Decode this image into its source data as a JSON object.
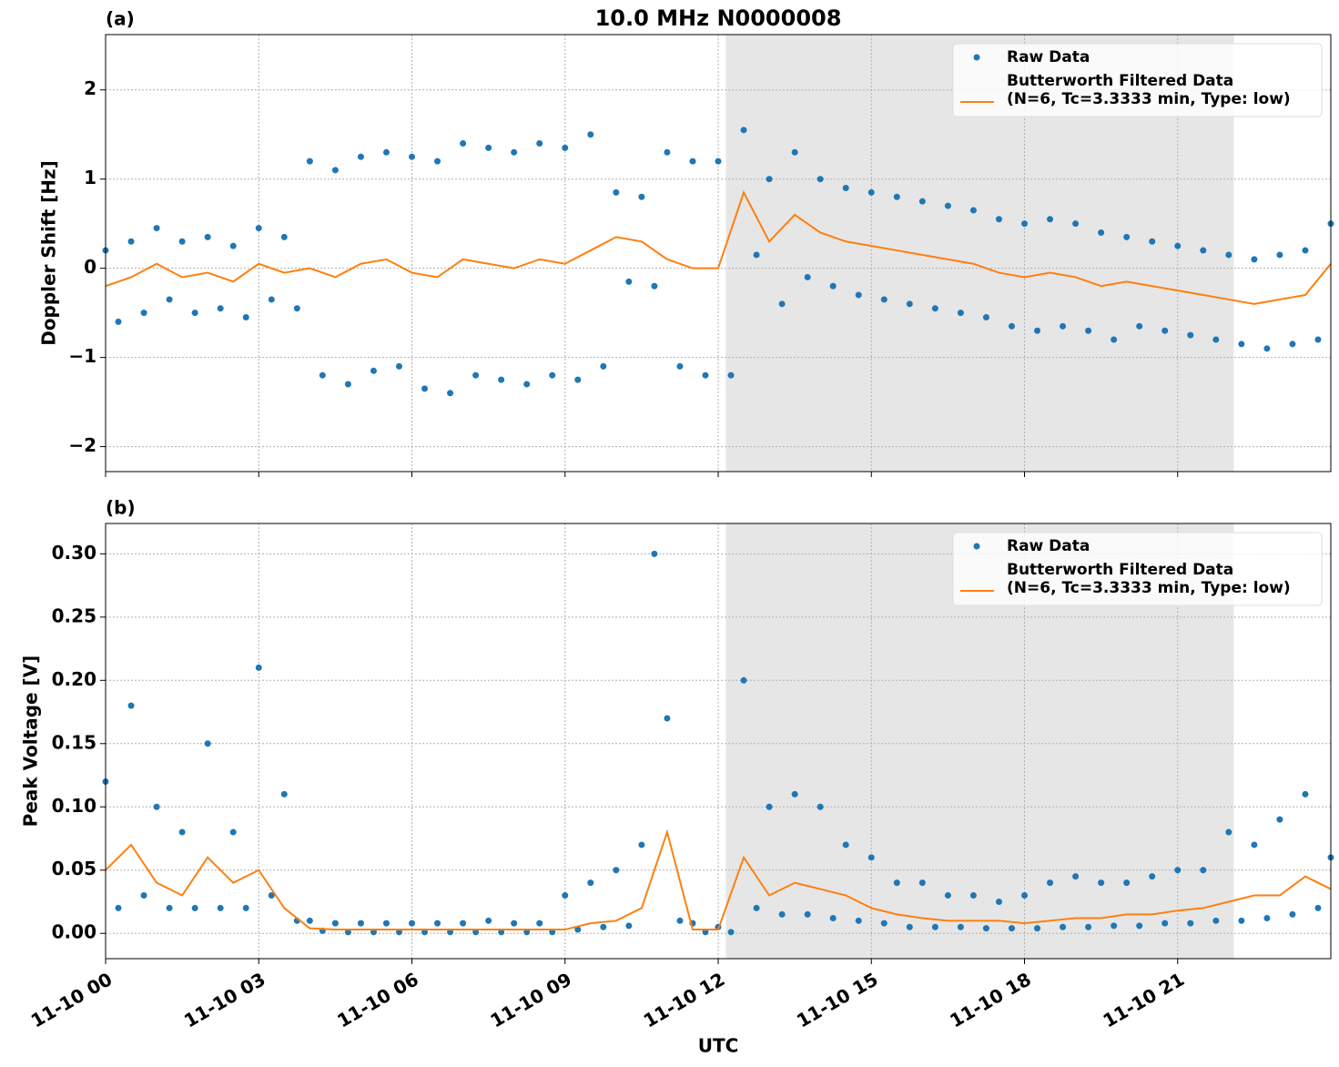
{
  "chart_data": [
    {
      "type": "line",
      "panel_label": "(a)",
      "title": "10.0 MHz N0000008",
      "ylabel": "Doppler Shift [Hz]",
      "xlim": [
        0,
        24
      ],
      "xticks": [
        0,
        3,
        6,
        9,
        12,
        15,
        18,
        21
      ],
      "ylim": [
        -2.28,
        2.62
      ],
      "yticks": [
        {
          "value": -2,
          "label": "−2"
        },
        {
          "value": -1,
          "label": "−1"
        },
        0,
        1,
        2
      ],
      "grid": true,
      "legend": "upper right",
      "shaded_region": [
        12.15,
        22.1
      ],
      "series": [
        {
          "name": "Raw Data",
          "type": "scatter",
          "color": "#1f77b4",
          "x": [
            0,
            0.25,
            0.5,
            0.75,
            1,
            1.25,
            1.5,
            1.75,
            2,
            2.25,
            2.5,
            2.75,
            3,
            3.25,
            3.5,
            3.75,
            4,
            4.25,
            4.5,
            4.75,
            5,
            5.25,
            5.5,
            5.75,
            6,
            6.25,
            6.5,
            6.75,
            7,
            7.25,
            7.5,
            7.75,
            8,
            8.25,
            8.5,
            8.75,
            9,
            9.25,
            9.5,
            9.75,
            10,
            10.25,
            10.5,
            10.75,
            11,
            11.25,
            11.5,
            11.75,
            12,
            12.25,
            12.5,
            12.75,
            13,
            13.25,
            13.5,
            13.75,
            14,
            14.25,
            14.5,
            14.75,
            15,
            15.25,
            15.5,
            15.75,
            16,
            16.25,
            16.5,
            16.75,
            17,
            17.25,
            17.5,
            17.75,
            18,
            18.25,
            18.5,
            18.75,
            19,
            19.25,
            19.5,
            19.75,
            20,
            20.25,
            20.5,
            20.75,
            21,
            21.25,
            21.5,
            21.75,
            22,
            22.25,
            22.5,
            22.75,
            23,
            23.25,
            23.5,
            23.75,
            24
          ],
          "values": [
            0.2,
            -0.6,
            0.3,
            -0.5,
            0.45,
            -0.35,
            0.3,
            -0.5,
            0.35,
            -0.45,
            0.25,
            -0.55,
            0.45,
            -0.35,
            0.35,
            -0.45,
            1.2,
            -1.2,
            1.1,
            -1.3,
            1.25,
            -1.15,
            1.3,
            -1.1,
            1.25,
            -1.35,
            1.2,
            -1.4,
            1.4,
            -1.2,
            1.35,
            -1.25,
            1.3,
            -1.3,
            1.4,
            -1.2,
            1.35,
            -1.25,
            1.5,
            -1.1,
            0.85,
            -0.15,
            0.8,
            -0.2,
            1.3,
            -1.1,
            1.2,
            -1.2,
            1.2,
            -1.2,
            1.55,
            0.15,
            1.0,
            -0.4,
            1.3,
            -0.1,
            1.0,
            -0.2,
            0.9,
            -0.3,
            0.85,
            -0.35,
            0.8,
            -0.4,
            0.75,
            -0.45,
            0.7,
            -0.5,
            0.65,
            -0.55,
            0.55,
            -0.65,
            0.5,
            -0.7,
            0.55,
            -0.65,
            0.5,
            -0.7,
            0.4,
            -0.8,
            0.35,
            -0.65,
            0.3,
            -0.7,
            0.25,
            -0.75,
            0.2,
            -0.8,
            0.15,
            -0.85,
            0.1,
            -0.9,
            0.15,
            -0.85,
            0.2,
            -0.8,
            0.5
          ]
        },
        {
          "name": [
            "Butterworth Filtered Data",
            "(N=6, Tc=3.3333 min, Type: low)"
          ],
          "type": "line",
          "color": "#ff7f0e",
          "x": [
            0,
            0.5,
            1,
            1.5,
            2,
            2.5,
            3,
            3.5,
            4,
            4.5,
            5,
            5.5,
            6,
            6.5,
            7,
            7.5,
            8,
            8.5,
            9,
            9.5,
            10,
            10.5,
            11,
            11.5,
            12,
            12.5,
            13,
            13.5,
            14,
            14.5,
            15,
            15.5,
            16,
            16.5,
            17,
            17.5,
            18,
            18.5,
            19,
            19.5,
            20,
            20.5,
            21,
            21.5,
            22,
            22.5,
            23,
            23.5,
            24
          ],
          "values": [
            -0.2,
            -0.1,
            0.05,
            -0.1,
            -0.05,
            -0.15,
            0.05,
            -0.05,
            0.0,
            -0.1,
            0.05,
            0.1,
            -0.05,
            -0.1,
            0.1,
            0.05,
            0.0,
            0.1,
            0.05,
            0.2,
            0.35,
            0.3,
            0.1,
            0.0,
            0.0,
            0.85,
            0.3,
            0.6,
            0.4,
            0.3,
            0.25,
            0.2,
            0.15,
            0.1,
            0.05,
            -0.05,
            -0.1,
            -0.05,
            -0.1,
            -0.2,
            -0.15,
            -0.2,
            -0.25,
            -0.3,
            -0.35,
            -0.4,
            -0.35,
            -0.3,
            0.05
          ]
        }
      ]
    },
    {
      "type": "line",
      "panel_label": "(b)",
      "ylabel": "Peak Voltage [V]",
      "xlabel": "UTC",
      "xlim": [
        0,
        24
      ],
      "xticks": [
        {
          "value": 0,
          "label": "11-10 00"
        },
        {
          "value": 3,
          "label": "11-10 03"
        },
        {
          "value": 6,
          "label": "11-10 06"
        },
        {
          "value": 9,
          "label": "11-10 09"
        },
        {
          "value": 12,
          "label": "11-10 12"
        },
        {
          "value": 15,
          "label": "11-10 15"
        },
        {
          "value": 18,
          "label": "11-10 18"
        },
        {
          "value": 21,
          "label": "11-10 21"
        }
      ],
      "ylim": [
        -0.02,
        0.324
      ],
      "yticks": [
        {
          "value": 0,
          "label": "0.00"
        },
        0.05,
        {
          "value": 0.1,
          "label": "0.10"
        },
        0.15,
        {
          "value": 0.2,
          "label": "0.20"
        },
        0.25,
        {
          "value": 0.3,
          "label": "0.30"
        }
      ],
      "grid": true,
      "legend": "upper right",
      "shaded_region": [
        12.15,
        22.1
      ],
      "series": [
        {
          "name": "Raw Data",
          "type": "scatter",
          "color": "#1f77b4",
          "x": [
            0,
            0.25,
            0.5,
            0.75,
            1,
            1.25,
            1.5,
            1.75,
            2,
            2.25,
            2.5,
            2.75,
            3,
            3.25,
            3.5,
            3.75,
            4,
            4.25,
            4.5,
            4.75,
            5,
            5.25,
            5.5,
            5.75,
            6,
            6.25,
            6.5,
            6.75,
            7,
            7.25,
            7.5,
            7.75,
            8,
            8.25,
            8.5,
            8.75,
            9,
            9.25,
            9.5,
            9.75,
            10,
            10.25,
            10.5,
            10.75,
            11,
            11.25,
            11.5,
            11.75,
            12,
            12.25,
            12.5,
            12.75,
            13,
            13.25,
            13.5,
            13.75,
            14,
            14.25,
            14.5,
            14.75,
            15,
            15.25,
            15.5,
            15.75,
            16,
            16.25,
            16.5,
            16.75,
            17,
            17.25,
            17.5,
            17.75,
            18,
            18.25,
            18.5,
            18.75,
            19,
            19.25,
            19.5,
            19.75,
            20,
            20.25,
            20.5,
            20.75,
            21,
            21.25,
            21.5,
            21.75,
            22,
            22.25,
            22.5,
            22.75,
            23,
            23.25,
            23.5,
            23.75,
            24
          ],
          "values": [
            0.12,
            0.02,
            0.18,
            0.03,
            0.1,
            0.02,
            0.08,
            0.02,
            0.15,
            0.02,
            0.08,
            0.02,
            0.21,
            0.03,
            0.11,
            0.01,
            0.01,
            0.002,
            0.008,
            0.001,
            0.008,
            0.001,
            0.008,
            0.001,
            0.008,
            0.001,
            0.008,
            0.001,
            0.008,
            0.001,
            0.01,
            0.001,
            0.008,
            0.001,
            0.008,
            0.001,
            0.03,
            0.003,
            0.04,
            0.005,
            0.05,
            0.006,
            0.07,
            0.3,
            0.17,
            0.01,
            0.008,
            0.001,
            0.005,
            0.001,
            0.2,
            0.02,
            0.1,
            0.015,
            0.11,
            0.015,
            0.1,
            0.012,
            0.07,
            0.01,
            0.06,
            0.008,
            0.04,
            0.005,
            0.04,
            0.005,
            0.03,
            0.005,
            0.03,
            0.004,
            0.025,
            0.004,
            0.03,
            0.004,
            0.04,
            0.005,
            0.045,
            0.005,
            0.04,
            0.006,
            0.04,
            0.006,
            0.045,
            0.008,
            0.05,
            0.008,
            0.05,
            0.01,
            0.08,
            0.01,
            0.07,
            0.012,
            0.09,
            0.015,
            0.11,
            0.02,
            0.06
          ]
        },
        {
          "name": [
            "Butterworth Filtered Data",
            "(N=6, Tc=3.3333 min, Type: low)"
          ],
          "type": "line",
          "color": "#ff7f0e",
          "x": [
            0,
            0.5,
            1,
            1.5,
            2,
            2.5,
            3,
            3.5,
            4,
            4.5,
            5,
            5.5,
            6,
            6.5,
            7,
            7.5,
            8,
            8.5,
            9,
            9.5,
            10,
            10.5,
            11,
            11.5,
            12,
            12.5,
            13,
            13.5,
            14,
            14.5,
            15,
            15.5,
            16,
            16.5,
            17,
            17.5,
            18,
            18.5,
            19,
            19.5,
            20,
            20.5,
            21,
            21.5,
            22,
            22.5,
            23,
            23.5,
            24
          ],
          "values": [
            0.05,
            0.07,
            0.04,
            0.03,
            0.06,
            0.04,
            0.05,
            0.02,
            0.004,
            0.003,
            0.003,
            0.003,
            0.003,
            0.003,
            0.003,
            0.003,
            0.003,
            0.003,
            0.003,
            0.008,
            0.01,
            0.02,
            0.08,
            0.003,
            0.003,
            0.06,
            0.03,
            0.04,
            0.035,
            0.03,
            0.02,
            0.015,
            0.012,
            0.01,
            0.01,
            0.01,
            0.008,
            0.01,
            0.012,
            0.012,
            0.015,
            0.015,
            0.018,
            0.02,
            0.025,
            0.03,
            0.03,
            0.045,
            0.035
          ]
        }
      ]
    }
  ]
}
